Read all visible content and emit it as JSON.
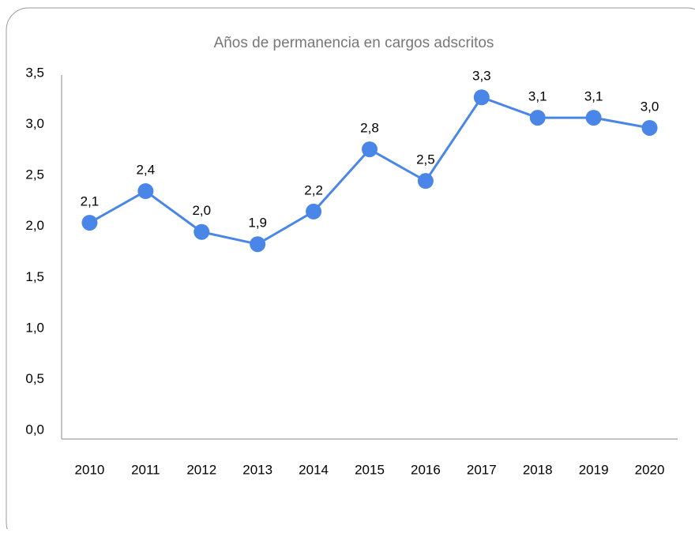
{
  "chart_data": {
    "type": "line",
    "title": "Años de permanencia en cargos adscritos",
    "categories": [
      "2010",
      "2011",
      "2012",
      "2013",
      "2014",
      "2015",
      "2016",
      "2017",
      "2018",
      "2019",
      "2020"
    ],
    "series": [
      {
        "color": "#4a86e8",
        "values": [
          2.09,
          2.4,
          2.0,
          1.88,
          2.2,
          2.81,
          2.5,
          3.32,
          3.12,
          3.12,
          3.02
        ],
        "value_labels": [
          "2,1",
          "2,4",
          "2,0",
          "1,9",
          "2,2",
          "2,8",
          "2,5",
          "3,3",
          "3,1",
          "3,1",
          "3,0"
        ]
      }
    ],
    "ylim": [
      0,
      3.5
    ],
    "yticks": [
      {
        "value": 0,
        "label": "0,0"
      },
      {
        "value": 0.5,
        "label": "0,5"
      },
      {
        "value": 1,
        "label": "1,0"
      },
      {
        "value": 1.5,
        "label": "1,5"
      },
      {
        "value": 2,
        "label": "2,0"
      },
      {
        "value": 2.5,
        "label": "2,5"
      },
      {
        "value": 3,
        "label": "3,0"
      },
      {
        "value": 3.5,
        "label": "3,5"
      }
    ],
    "grid": false
  }
}
